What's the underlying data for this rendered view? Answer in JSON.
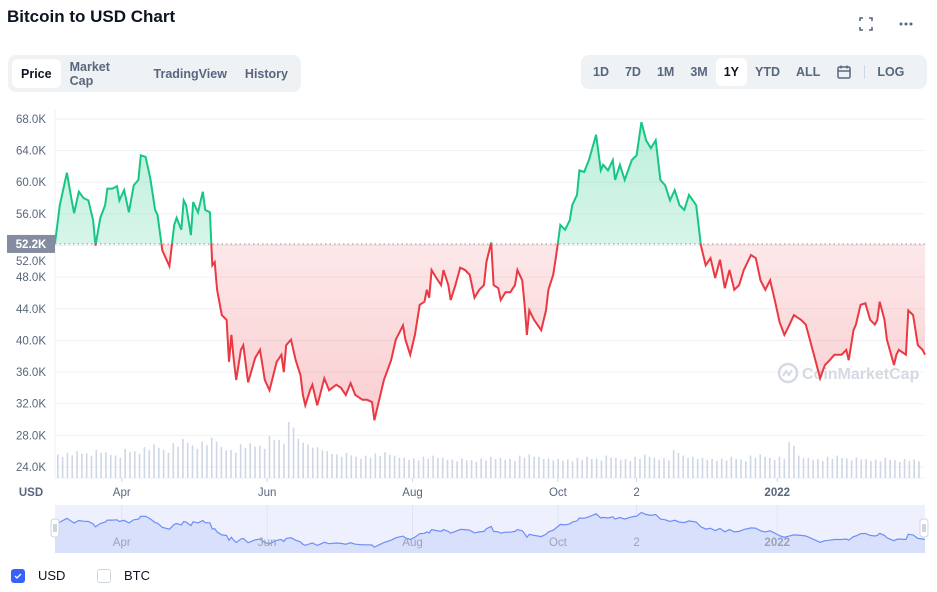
{
  "header": {
    "title": "Bitcoin to USD Chart",
    "icons": [
      "fullscreen-icon",
      "more-icon"
    ]
  },
  "tabs": [
    {
      "label": "Price",
      "active": true
    },
    {
      "label": "Market Cap",
      "active": false
    },
    {
      "label": "TradingView",
      "active": false
    },
    {
      "label": "History",
      "active": false
    }
  ],
  "ranges": [
    {
      "label": "1D",
      "active": false
    },
    {
      "label": "7D",
      "active": false
    },
    {
      "label": "1M",
      "active": false
    },
    {
      "label": "3M",
      "active": false
    },
    {
      "label": "1Y",
      "active": true
    },
    {
      "label": "YTD",
      "active": false
    },
    {
      "label": "ALL",
      "active": false
    }
  ],
  "log_label": "LOG",
  "legend": [
    {
      "label": "USD",
      "checked": true
    },
    {
      "label": "BTC",
      "checked": false
    }
  ],
  "watermark": "CoinMarketCap",
  "colors": {
    "up": "#16c784",
    "down": "#ea3943",
    "accent": "#3861fb",
    "nav_line": "#6d8ef7"
  },
  "chart_data": {
    "type": "line",
    "title": "Bitcoin to USD Chart",
    "ylabel": "USD",
    "xlabel": "",
    "ylim": [
      24,
      70
    ],
    "y_ticks": [
      "24.0K",
      "28.0K",
      "32.0K",
      "36.0K",
      "40.0K",
      "44.0K",
      "48.0K",
      "52.0K",
      "56.0K",
      "60.0K",
      "64.0K",
      "68.0K"
    ],
    "y_tick_values": [
      24,
      28,
      32,
      36,
      40,
      44,
      48,
      52,
      56,
      60,
      64,
      68
    ],
    "x_ticks": [
      {
        "label": "Apr",
        "day": 28
      },
      {
        "label": "Jun",
        "day": 89
      },
      {
        "label": "Aug",
        "day": 150
      },
      {
        "label": "Oct",
        "day": 211
      },
      {
        "label": "2",
        "day": 244
      },
      {
        "label": "2022",
        "day": 303,
        "bold": true
      }
    ],
    "xlim_days": [
      0,
      365
    ],
    "reference_price": 52.2,
    "reference_label": "52.2K",
    "units": "USD thousands",
    "series": [
      [
        0,
        52.3
      ],
      [
        2,
        57.1
      ],
      [
        5,
        61.2
      ],
      [
        7,
        57.7
      ],
      [
        8,
        56.1
      ],
      [
        10,
        58.8
      ],
      [
        12,
        58.0
      ],
      [
        14,
        57.7
      ],
      [
        16,
        55.2
      ],
      [
        17,
        52.0
      ],
      [
        19,
        55.5
      ],
      [
        21,
        57.1
      ],
      [
        22,
        59.2
      ],
      [
        24,
        59.2
      ],
      [
        26,
        59.5
      ],
      [
        27,
        57.7
      ],
      [
        29,
        59.0
      ],
      [
        31,
        56.2
      ],
      [
        33,
        59.6
      ],
      [
        35,
        60.3
      ],
      [
        36,
        63.4
      ],
      [
        38,
        63.2
      ],
      [
        40,
        60.5
      ],
      [
        42,
        56.5
      ],
      [
        43,
        55.9
      ],
      [
        45,
        51.4
      ],
      [
        48,
        49.4
      ],
      [
        50,
        54.6
      ],
      [
        51,
        55.5
      ],
      [
        53,
        54.0
      ],
      [
        54,
        57.7
      ],
      [
        55,
        57.1
      ],
      [
        57,
        53.3
      ],
      [
        58,
        57.5
      ],
      [
        60,
        56.2
      ],
      [
        62,
        58.8
      ],
      [
        63,
        56.5
      ],
      [
        65,
        56.2
      ],
      [
        66,
        49.5
      ],
      [
        67,
        49.9
      ],
      [
        68,
        46.4
      ],
      [
        70,
        43.2
      ],
      [
        72,
        42.6
      ],
      [
        73,
        37.3
      ],
      [
        74,
        40.7
      ],
      [
        75,
        37.5
      ],
      [
        76,
        35.0
      ],
      [
        78,
        38.8
      ],
      [
        79,
        39.4
      ],
      [
        81,
        34.7
      ],
      [
        84,
        37.8
      ],
      [
        86,
        38.8
      ],
      [
        88,
        35.0
      ],
      [
        90,
        33.7
      ],
      [
        93,
        37.3
      ],
      [
        95,
        38.2
      ],
      [
        96,
        36.0
      ],
      [
        97,
        39.4
      ],
      [
        99,
        40.1
      ],
      [
        101,
        37.5
      ],
      [
        103,
        35.6
      ],
      [
        104,
        33.1
      ],
      [
        105,
        31.8
      ],
      [
        107,
        33.7
      ],
      [
        108,
        34.4
      ],
      [
        110,
        31.8
      ],
      [
        111,
        32.9
      ],
      [
        113,
        35.2
      ],
      [
        115,
        33.7
      ],
      [
        118,
        34.4
      ],
      [
        120,
        34.0
      ],
      [
        122,
        33.1
      ],
      [
        124,
        34.6
      ],
      [
        126,
        33.1
      ],
      [
        129,
        32.5
      ],
      [
        131,
        32.5
      ],
      [
        133,
        32.2
      ],
      [
        134,
        29.9
      ],
      [
        136,
        32.5
      ],
      [
        138,
        35.0
      ],
      [
        141,
        37.5
      ],
      [
        143,
        40.1
      ],
      [
        144,
        40.7
      ],
      [
        146,
        41.9
      ],
      [
        147,
        40.1
      ],
      [
        149,
        38.2
      ],
      [
        151,
        40.7
      ],
      [
        153,
        44.5
      ],
      [
        155,
        44.9
      ],
      [
        156,
        46.4
      ],
      [
        157,
        45.4
      ],
      [
        158,
        48.9
      ],
      [
        160,
        47.9
      ],
      [
        162,
        47.0
      ],
      [
        163,
        48.9
      ],
      [
        165,
        47.0
      ],
      [
        166,
        45.1
      ],
      [
        168,
        47.0
      ],
      [
        170,
        49.2
      ],
      [
        172,
        48.9
      ],
      [
        174,
        48.3
      ],
      [
        176,
        45.4
      ],
      [
        178,
        46.4
      ],
      [
        180,
        47.0
      ],
      [
        181,
        49.9
      ],
      [
        183,
        52.4
      ],
      [
        184,
        47.0
      ],
      [
        186,
        46.6
      ],
      [
        187,
        45.1
      ],
      [
        189,
        46.1
      ],
      [
        191,
        46.1
      ],
      [
        193,
        47.0
      ],
      [
        194,
        48.9
      ],
      [
        196,
        47.6
      ],
      [
        197,
        44.5
      ],
      [
        198,
        40.7
      ],
      [
        199,
        43.8
      ],
      [
        201,
        42.6
      ],
      [
        204,
        41.3
      ],
      [
        206,
        43.8
      ],
      [
        207,
        46.4
      ],
      [
        209,
        48.3
      ],
      [
        210,
        50.2
      ],
      [
        211,
        52.3
      ],
      [
        212,
        54.6
      ],
      [
        214,
        54.0
      ],
      [
        216,
        55.2
      ],
      [
        217,
        57.1
      ],
      [
        219,
        58.4
      ],
      [
        220,
        61.5
      ],
      [
        222,
        61.3
      ],
      [
        224,
        62.8
      ],
      [
        227,
        66.0
      ],
      [
        229,
        61.5
      ],
      [
        230,
        62.2
      ],
      [
        232,
        61.5
      ],
      [
        234,
        62.8
      ],
      [
        235,
        60.3
      ],
      [
        237,
        62.2
      ],
      [
        239,
        60.3
      ],
      [
        242,
        62.8
      ],
      [
        244,
        63.4
      ],
      [
        246,
        67.6
      ],
      [
        248,
        65.3
      ],
      [
        250,
        64.3
      ],
      [
        252,
        65.3
      ],
      [
        254,
        60.3
      ],
      [
        256,
        59.6
      ],
      [
        258,
        57.7
      ],
      [
        260,
        59.0
      ],
      [
        262,
        57.1
      ],
      [
        264,
        56.5
      ],
      [
        266,
        58.4
      ],
      [
        269,
        57.1
      ],
      [
        271,
        52.0
      ],
      [
        273,
        49.5
      ],
      [
        275,
        50.4
      ],
      [
        277,
        47.9
      ],
      [
        279,
        50.2
      ],
      [
        281,
        46.6
      ],
      [
        283,
        48.9
      ],
      [
        285,
        46.4
      ],
      [
        287,
        47.0
      ],
      [
        289,
        48.9
      ],
      [
        292,
        50.8
      ],
      [
        294,
        50.4
      ],
      [
        296,
        47.6
      ],
      [
        298,
        46.4
      ],
      [
        300,
        47.6
      ],
      [
        302,
        45.1
      ],
      [
        304,
        42.3
      ],
      [
        306,
        40.7
      ],
      [
        308,
        41.9
      ],
      [
        310,
        43.2
      ],
      [
        313,
        42.6
      ],
      [
        315,
        42.0
      ],
      [
        319,
        37.5
      ],
      [
        321,
        35.2
      ],
      [
        323,
        36.9
      ],
      [
        325,
        37.5
      ],
      [
        327,
        38.2
      ],
      [
        330,
        38.2
      ],
      [
        332,
        38.8
      ],
      [
        333,
        37.5
      ],
      [
        335,
        41.3
      ],
      [
        336,
        42.0
      ],
      [
        338,
        44.5
      ],
      [
        340,
        44.7
      ],
      [
        342,
        42.6
      ],
      [
        344,
        42.0
      ],
      [
        345,
        42.6
      ],
      [
        346,
        44.9
      ],
      [
        348,
        42.6
      ],
      [
        349,
        40.1
      ],
      [
        352,
        36.9
      ],
      [
        353,
        38.2
      ],
      [
        354,
        38.8
      ],
      [
        357,
        38.2
      ],
      [
        358,
        43.8
      ],
      [
        360,
        43.2
      ],
      [
        362,
        39.4
      ],
      [
        364,
        38.8
      ],
      [
        365,
        38.2
      ]
    ],
    "volume_relative": [
      0.42,
      0.45,
      0.48,
      0.44,
      0.5,
      0.46,
      0.4,
      0.52,
      0.48,
      0.55,
      0.6,
      0.5,
      0.62,
      0.7,
      0.58,
      0.65,
      0.72,
      0.55,
      0.5,
      0.6,
      0.62,
      0.58,
      0.75,
      0.68,
      1.0,
      0.7,
      0.6,
      0.55,
      0.48,
      0.42,
      0.45,
      0.38,
      0.4,
      0.44,
      0.46,
      0.4,
      0.36,
      0.35,
      0.38,
      0.4,
      0.36,
      0.33,
      0.35,
      0.32,
      0.35,
      0.38,
      0.36,
      0.34,
      0.4,
      0.42,
      0.38,
      0.35,
      0.34,
      0.33,
      0.36,
      0.38,
      0.35,
      0.4,
      0.36,
      0.34,
      0.38,
      0.42,
      0.36,
      0.35,
      0.5,
      0.4,
      0.38,
      0.36,
      0.34,
      0.35,
      0.38,
      0.33,
      0.4,
      0.42,
      0.36,
      0.38,
      0.64,
      0.4,
      0.36,
      0.34,
      0.38,
      0.4,
      0.35,
      0.37,
      0.34,
      0.33,
      0.36,
      0.32,
      0.34,
      0.33
    ]
  }
}
